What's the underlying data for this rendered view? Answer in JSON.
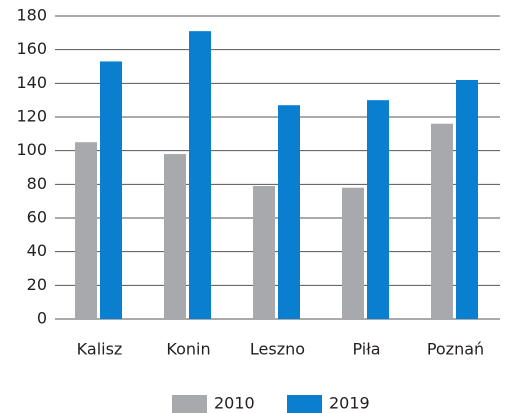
{
  "chart_data": {
    "type": "bar",
    "categories": [
      "Kalisz",
      "Konin",
      "Leszno",
      "Piła",
      "Poznań"
    ],
    "series": [
      {
        "name": "2010",
        "color": "#a7a9ac",
        "values": [
          105,
          98,
          79,
          78,
          116
        ]
      },
      {
        "name": "2019",
        "color": "#0a7fd0",
        "values": [
          153,
          171,
          127,
          130,
          142
        ]
      }
    ],
    "ylim": [
      0,
      180
    ],
    "yticks": [
      0,
      20,
      40,
      60,
      80,
      100,
      120,
      140,
      160,
      180
    ],
    "grid": true
  }
}
